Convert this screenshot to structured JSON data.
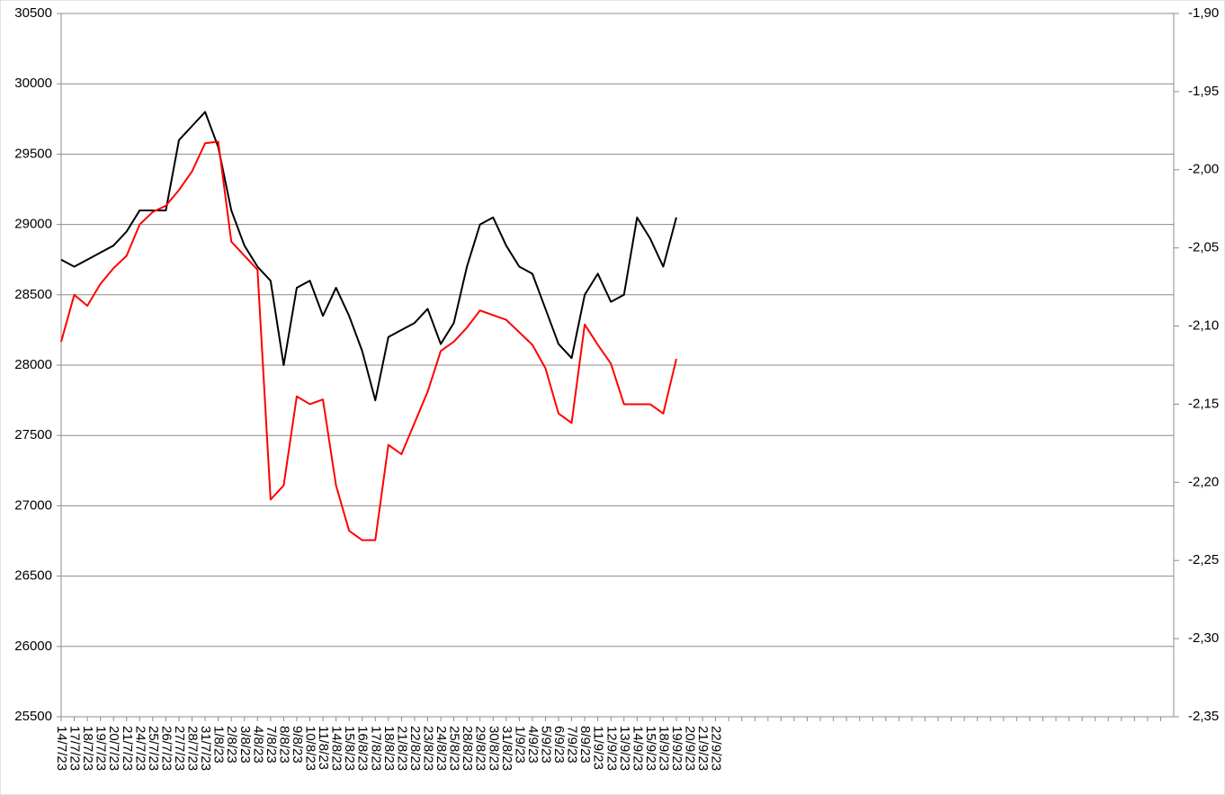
{
  "chart_data": {
    "type": "line",
    "categories": [
      "14/7/23",
      "17/7/23",
      "18/7/23",
      "19/7/23",
      "20/7/23",
      "21/7/23",
      "24/7/23",
      "25/7/23",
      "26/7/23",
      "27/7/23",
      "28/7/23",
      "31/7/23",
      "1/8/23",
      "2/8/23",
      "3/8/23",
      "4/8/23",
      "7/8/23",
      "8/8/23",
      "9/8/23",
      "10/8/23",
      "11/8/23",
      "14/8/23",
      "15/8/23",
      "16/8/23",
      "17/8/23",
      "18/8/23",
      "21/8/23",
      "22/8/23",
      "23/8/23",
      "24/8/23",
      "25/8/23",
      "28/8/23",
      "29/8/23",
      "30/8/23",
      "31/8/23",
      "1/9/23",
      "4/9/23",
      "5/9/23",
      "6/9/23",
      "7/9/23",
      "8/9/23",
      "11/9/23",
      "12/9/23",
      "13/9/23",
      "14/9/23",
      "15/9/23",
      "18/9/23",
      "19/9/23",
      "20/9/23",
      "21/9/23",
      "22/9/23",
      null,
      null,
      null,
      null,
      null,
      null,
      null,
      null,
      null,
      null,
      null,
      null,
      null,
      null,
      null,
      null,
      null,
      null,
      null,
      null,
      null,
      null,
      null,
      null,
      null,
      null,
      null,
      null,
      null,
      null,
      null,
      null,
      null,
      null
    ],
    "series": [
      {
        "color": "#000000",
        "values": [
          28750,
          28700,
          28750,
          28800,
          28850,
          28950,
          29100,
          29100,
          29100,
          29600,
          29700,
          29800,
          29550,
          29100,
          28850,
          28700,
          28600,
          28000,
          28550,
          28600,
          28350,
          28550,
          28350,
          28100,
          27750,
          28200,
          28250,
          28300,
          28400,
          28150,
          28300,
          28700,
          29000,
          29050,
          28850,
          28700,
          28650,
          28400,
          28150,
          28050,
          28500,
          28650,
          28450,
          28500,
          29050,
          28900,
          28700,
          29050,
          null,
          null,
          null,
          null,
          null,
          null,
          null,
          null,
          null,
          null,
          null,
          null,
          null,
          null,
          null,
          null,
          null,
          null,
          null,
          null,
          null,
          null,
          null,
          null,
          null,
          null,
          null,
          null,
          null,
          null,
          null,
          null,
          null,
          null,
          null,
          null,
          null
        ]
      },
      {
        "color": "#ff0000",
        "axis": "y2",
        "values": [
          -2.11,
          -2.08,
          -2.087,
          -2.073,
          -2.063,
          -2.055,
          -2.035,
          -2.027,
          -2.023,
          -2.013,
          -2.001,
          -1.983,
          -1.982,
          -2.046,
          -2.055,
          -2.064,
          -2.211,
          -2.202,
          -2.145,
          -2.15,
          -2.147,
          -2.202,
          -2.231,
          -2.237,
          -2.237,
          -2.176,
          -2.182,
          -2.162,
          -2.142,
          -2.116,
          -2.11,
          -2.101,
          -2.09,
          -2.093,
          -2.096,
          -2.104,
          -2.112,
          -2.127,
          -2.156,
          -2.162,
          -2.099,
          -2.112,
          -2.124,
          -2.15,
          -2.15,
          -2.15,
          -2.156,
          -2.121,
          null,
          null,
          null,
          null,
          null,
          null,
          null,
          null,
          null,
          null,
          null,
          null,
          null,
          null,
          null,
          null,
          null,
          null,
          null,
          null,
          null,
          null,
          null,
          null,
          null,
          null,
          null,
          null,
          null,
          null,
          null,
          null,
          null,
          null,
          null,
          null,
          null
        ]
      }
    ],
    "ylim": [
      25500,
      30500
    ],
    "yticks": [
      25500,
      26000,
      26500,
      27000,
      27500,
      28000,
      28500,
      29000,
      29500,
      30000,
      30500
    ],
    "y2lim": [
      -2.35,
      -1.9
    ],
    "y2ticks": [
      {
        "value": -2.35,
        "label": "-2,35"
      },
      {
        "value": -2.3,
        "label": "-2,30"
      },
      {
        "value": -2.25,
        "label": "-2,25"
      },
      {
        "value": -2.2,
        "label": "-2,20"
      },
      {
        "value": -2.15,
        "label": "-2,15"
      },
      {
        "value": -2.1,
        "label": "-2,10"
      },
      {
        "value": -2.05,
        "label": "-2,05"
      },
      {
        "value": -2,
        "label": "-2,00"
      },
      {
        "value": -1.95,
        "label": "-1,95"
      },
      {
        "value": -1.9,
        "label": "-1,90"
      }
    ],
    "grid": true
  }
}
